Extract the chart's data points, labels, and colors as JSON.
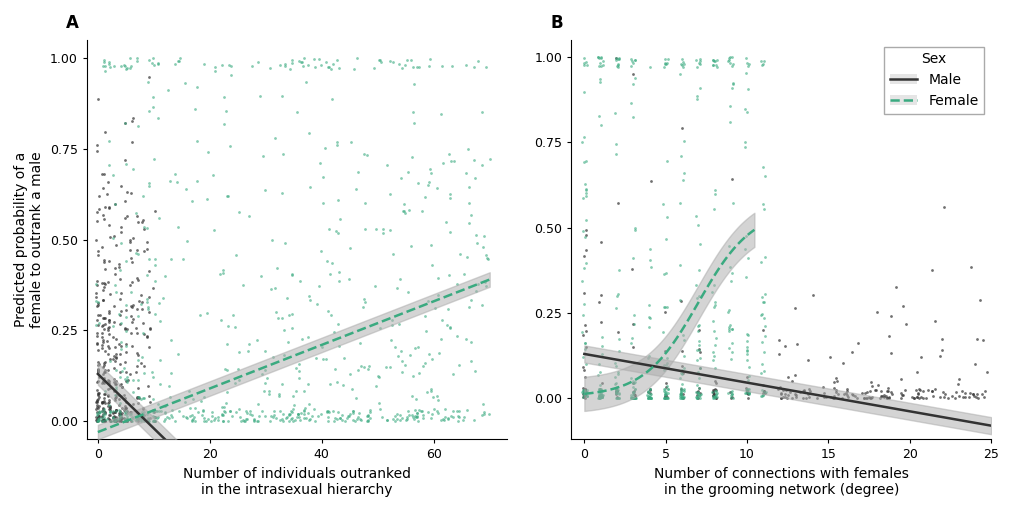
{
  "panel_A": {
    "label": "A",
    "xlabel": "Number of individuals outranked\nin the intrasexual hierarchy",
    "ylabel": "Predicted probability of a\nfemale to outrank a male",
    "xlim": [
      -2,
      73
    ],
    "ylim": [
      -0.05,
      1.05
    ],
    "xticks": [
      0,
      20,
      40,
      60
    ],
    "yticks": [
      0.0,
      0.25,
      0.5,
      0.75,
      1.0
    ],
    "male_color": "#333333",
    "female_color": "#3aaa80",
    "line_color_male": "#333333",
    "line_color_female": "#3aaa80",
    "band_color": "#aaaaaa"
  },
  "panel_B": {
    "label": "B",
    "xlabel": "Number of connections with females\nin the grooming network (degree)",
    "ylabel": "",
    "xlim": [
      -0.8,
      25
    ],
    "ylim": [
      -0.12,
      1.05
    ],
    "xticks": [
      0,
      5,
      10,
      15,
      20,
      25
    ],
    "yticks": [
      0.0,
      0.25,
      0.5,
      0.75,
      1.0
    ],
    "male_color": "#333333",
    "female_color": "#3aaa80",
    "line_color_male": "#333333",
    "line_color_female": "#3aaa80",
    "band_color": "#aaaaaa",
    "legend_title": "Sex",
    "legend_male": "Male",
    "legend_female": "Female"
  },
  "background_color": "#ffffff",
  "axis_color": "#333333",
  "fontsize_label": 10,
  "fontsize_tick": 9,
  "fontsize_panel": 12
}
